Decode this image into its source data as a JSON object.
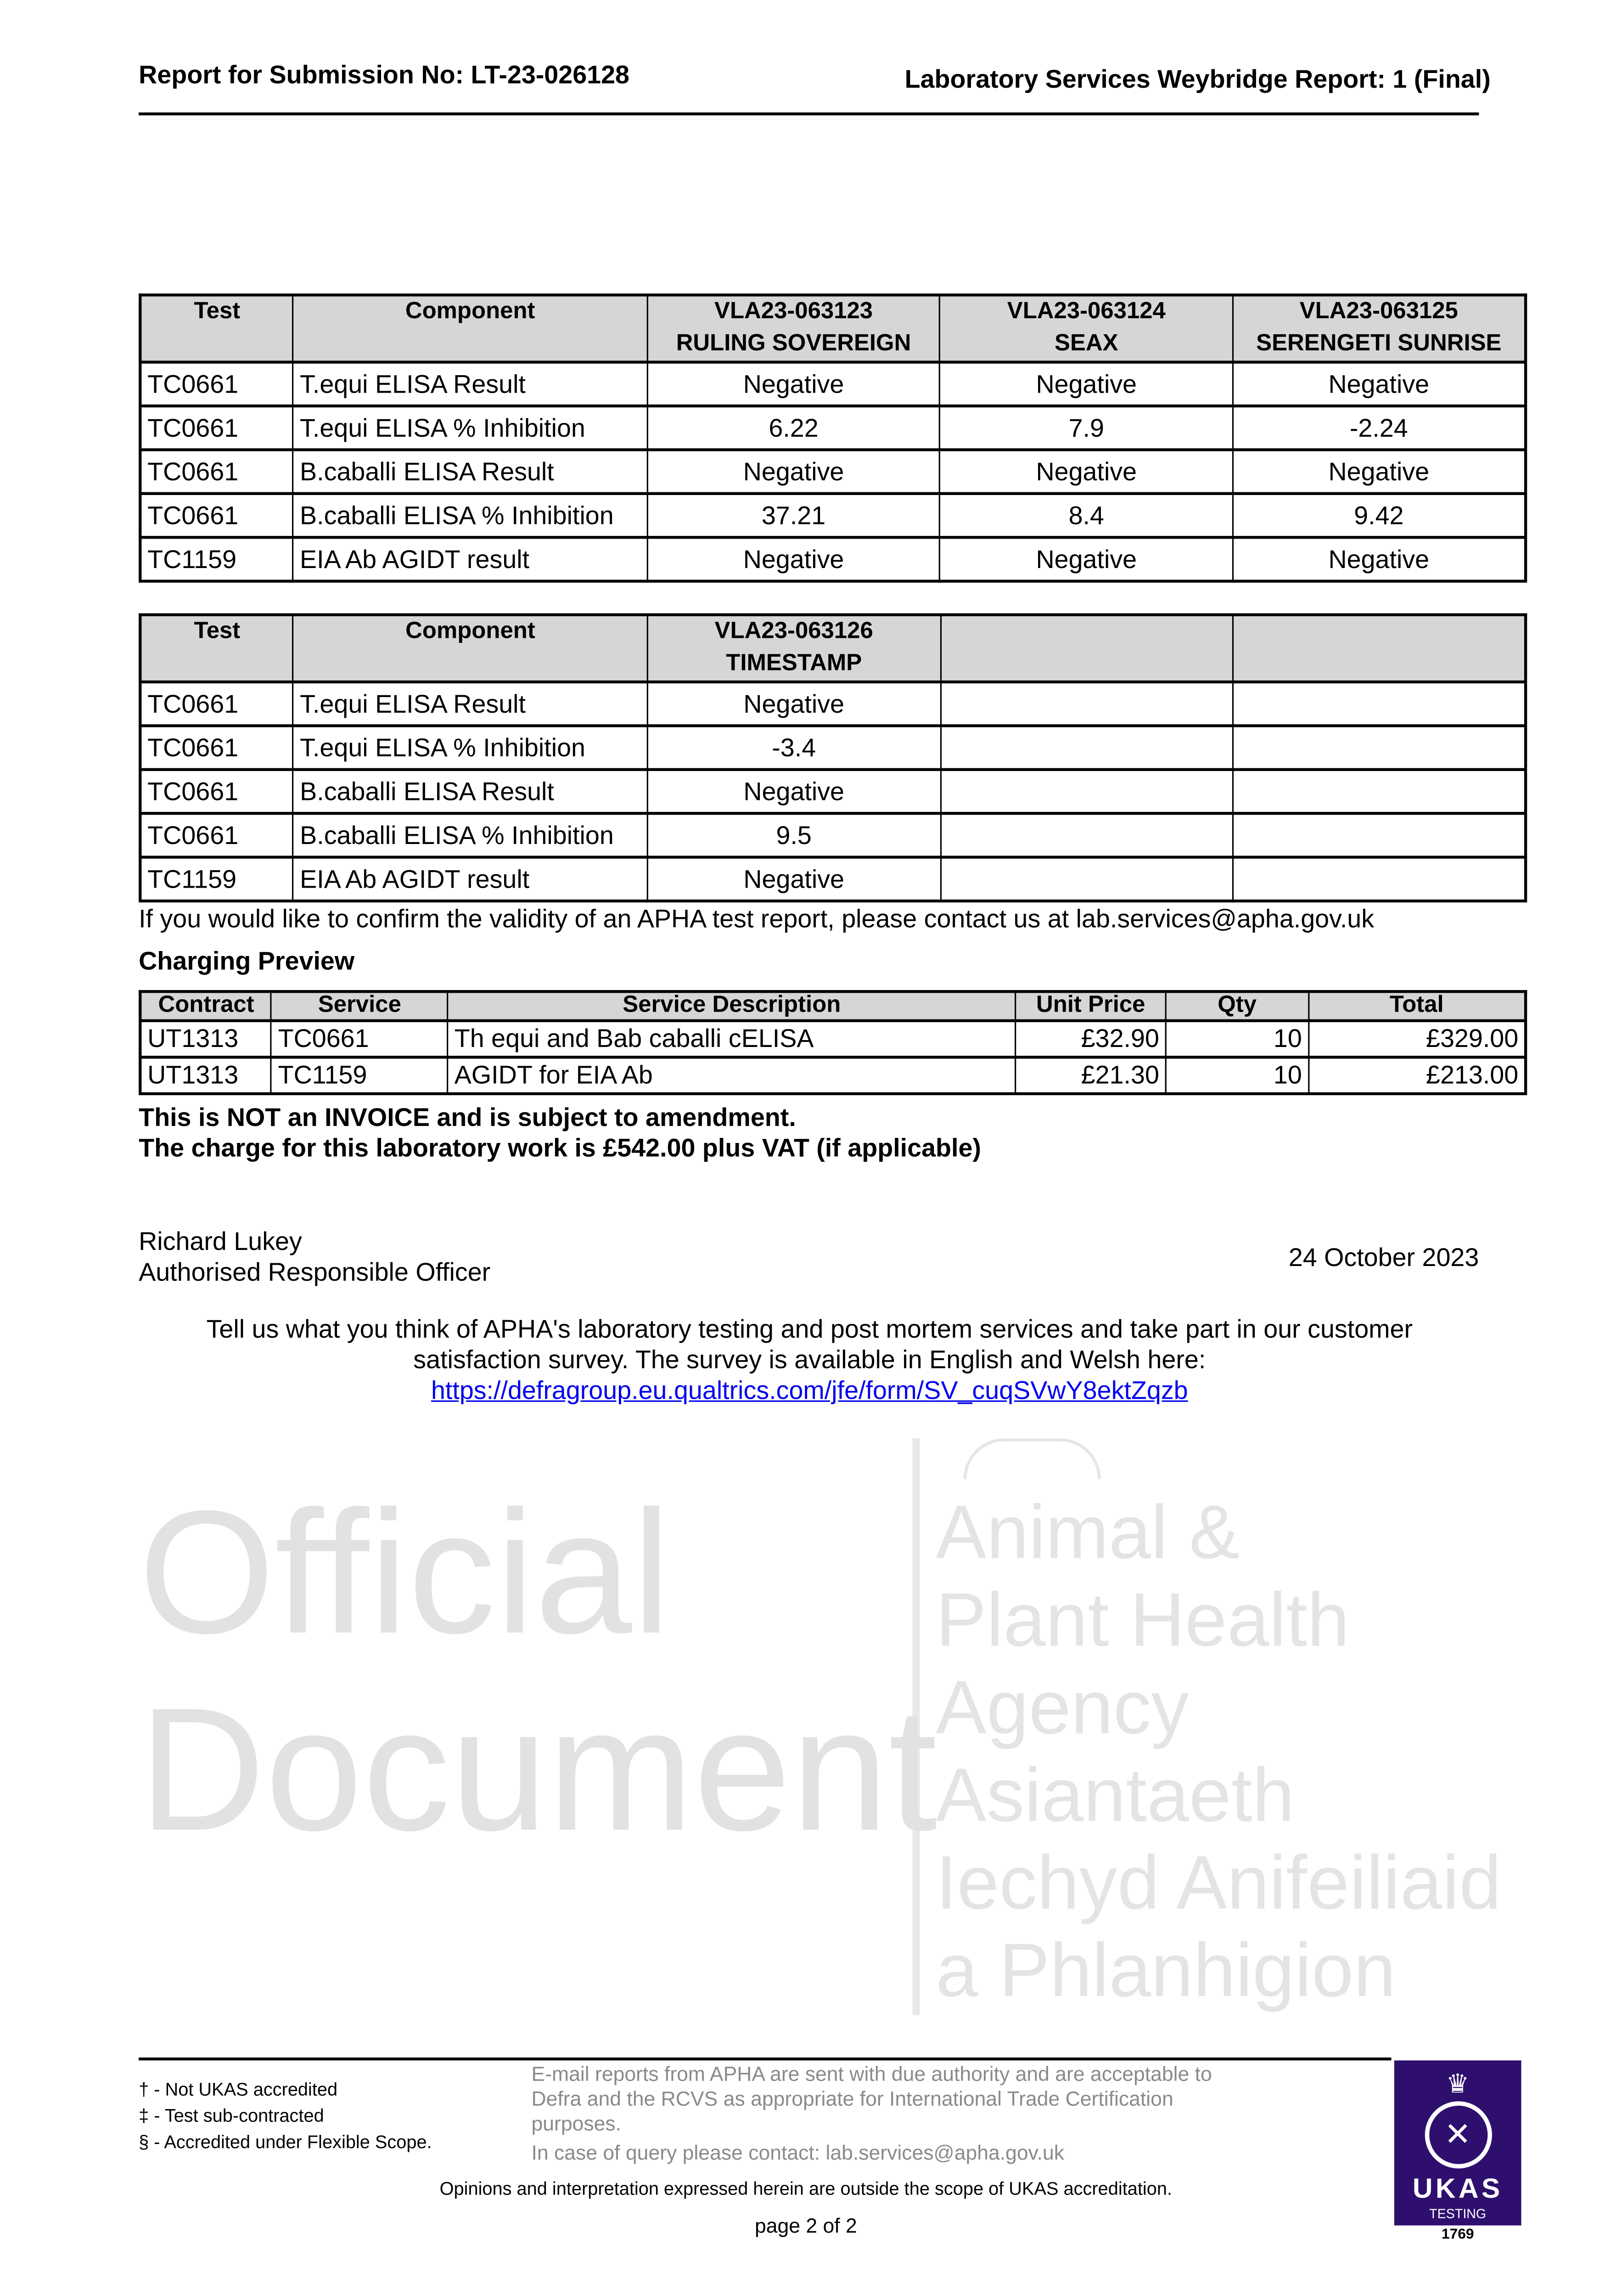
{
  "header": {
    "left": "Report for Submission No: LT-23-026128",
    "right": "Laboratory Services Weybridge Report: 1 (Final)"
  },
  "watermark": {
    "agency_lines": [
      "Animal &",
      "Plant Health",
      "Agency",
      "Asiantaeth",
      "Iechyd Anifeiliaid",
      "a Phlanhigion"
    ],
    "diagonal": [
      "Official",
      "Document"
    ]
  },
  "results_table_1": {
    "headers": [
      "Test",
      "Component",
      "VLA23-063123",
      "VLA23-063124",
      "VLA23-063125"
    ],
    "subheaders": [
      "",
      "",
      "RULING SOVEREIGN",
      "SEAX",
      "SERENGETI SUNRISE"
    ],
    "rows": [
      [
        "TC0661",
        "T.equi ELISA Result",
        "Negative",
        "Negative",
        "Negative"
      ],
      [
        "TC0661",
        "T.equi ELISA % Inhibition",
        "6.22",
        "7.9",
        "-2.24"
      ],
      [
        "TC0661",
        "B.caballi ELISA Result",
        "Negative",
        "Negative",
        "Negative"
      ],
      [
        "TC0661",
        "B.caballi ELISA % Inhibition",
        "37.21",
        "8.4",
        "9.42"
      ],
      [
        "TC1159",
        "EIA Ab AGIDT result",
        "Negative",
        "Negative",
        "Negative"
      ]
    ]
  },
  "results_table_2": {
    "headers": [
      "Test",
      "Component",
      "VLA23-063126",
      "",
      ""
    ],
    "subheaders": [
      "",
      "",
      "TIMESTAMP",
      "",
      ""
    ],
    "rows": [
      [
        "TC0661",
        "T.equi ELISA Result",
        "Negative",
        "",
        ""
      ],
      [
        "TC0661",
        "T.equi ELISA % Inhibition",
        "-3.4",
        "",
        ""
      ],
      [
        "TC0661",
        "B.caballi ELISA Result",
        "Negative",
        "",
        ""
      ],
      [
        "TC0661",
        "B.caballi ELISA % Inhibition",
        "9.5",
        "",
        ""
      ],
      [
        "TC1159",
        "EIA Ab AGIDT result",
        "Negative",
        "",
        ""
      ]
    ]
  },
  "validity_note": "If you would like to confirm the validity of an APHA test report, please contact us at lab.services@apha.gov.uk",
  "charging": {
    "title": "Charging Preview",
    "headers": [
      "Contract",
      "Service",
      "Service Description",
      "Unit Price",
      "Qty",
      "Total"
    ],
    "rows": [
      [
        "UT1313",
        "TC0661",
        "Th equi and Bab caballi cELISA",
        "£32.90",
        "10",
        "£329.00"
      ],
      [
        "UT1313",
        "TC1159",
        "AGIDT for EIA Ab",
        "£21.30",
        "10",
        "£213.00"
      ]
    ],
    "notice_1": "This is NOT an INVOICE and is subject to amendment.",
    "notice_2": "The charge for this laboratory work is £542.00 plus VAT (if applicable)"
  },
  "signature": {
    "name": "Richard Lukey",
    "role": "Authorised Responsible Officer",
    "date": "24 October 2023"
  },
  "survey": {
    "line_1": "Tell us what you think of APHA's laboratory testing and post mortem services and take part in our customer",
    "line_2": "satisfaction survey. The survey is available in English and Welsh here:",
    "link": "https://defragroup.eu.qualtrics.com/jfe/form/SV_cuqSVwY8ektZqzb"
  },
  "footer": {
    "footnotes": [
      "† - Not UKAS accredited",
      "‡ - Test sub-contracted",
      "§ - Accredited under Flexible Scope."
    ],
    "email_note": "E-mail reports from APHA are sent with due authority and are acceptable to Defra and the RCVS as appropriate for International Trade Certification purposes.",
    "query": "In case of query please contact: lab.services@apha.gov.uk",
    "opinions": "Opinions and interpretation expressed herein are outside the scope of UKAS accreditation.",
    "page": "page 2 of 2",
    "ukas": {
      "label": "UKAS",
      "sub": "TESTING",
      "number": "1769",
      "color": "#2e0f6e"
    }
  }
}
